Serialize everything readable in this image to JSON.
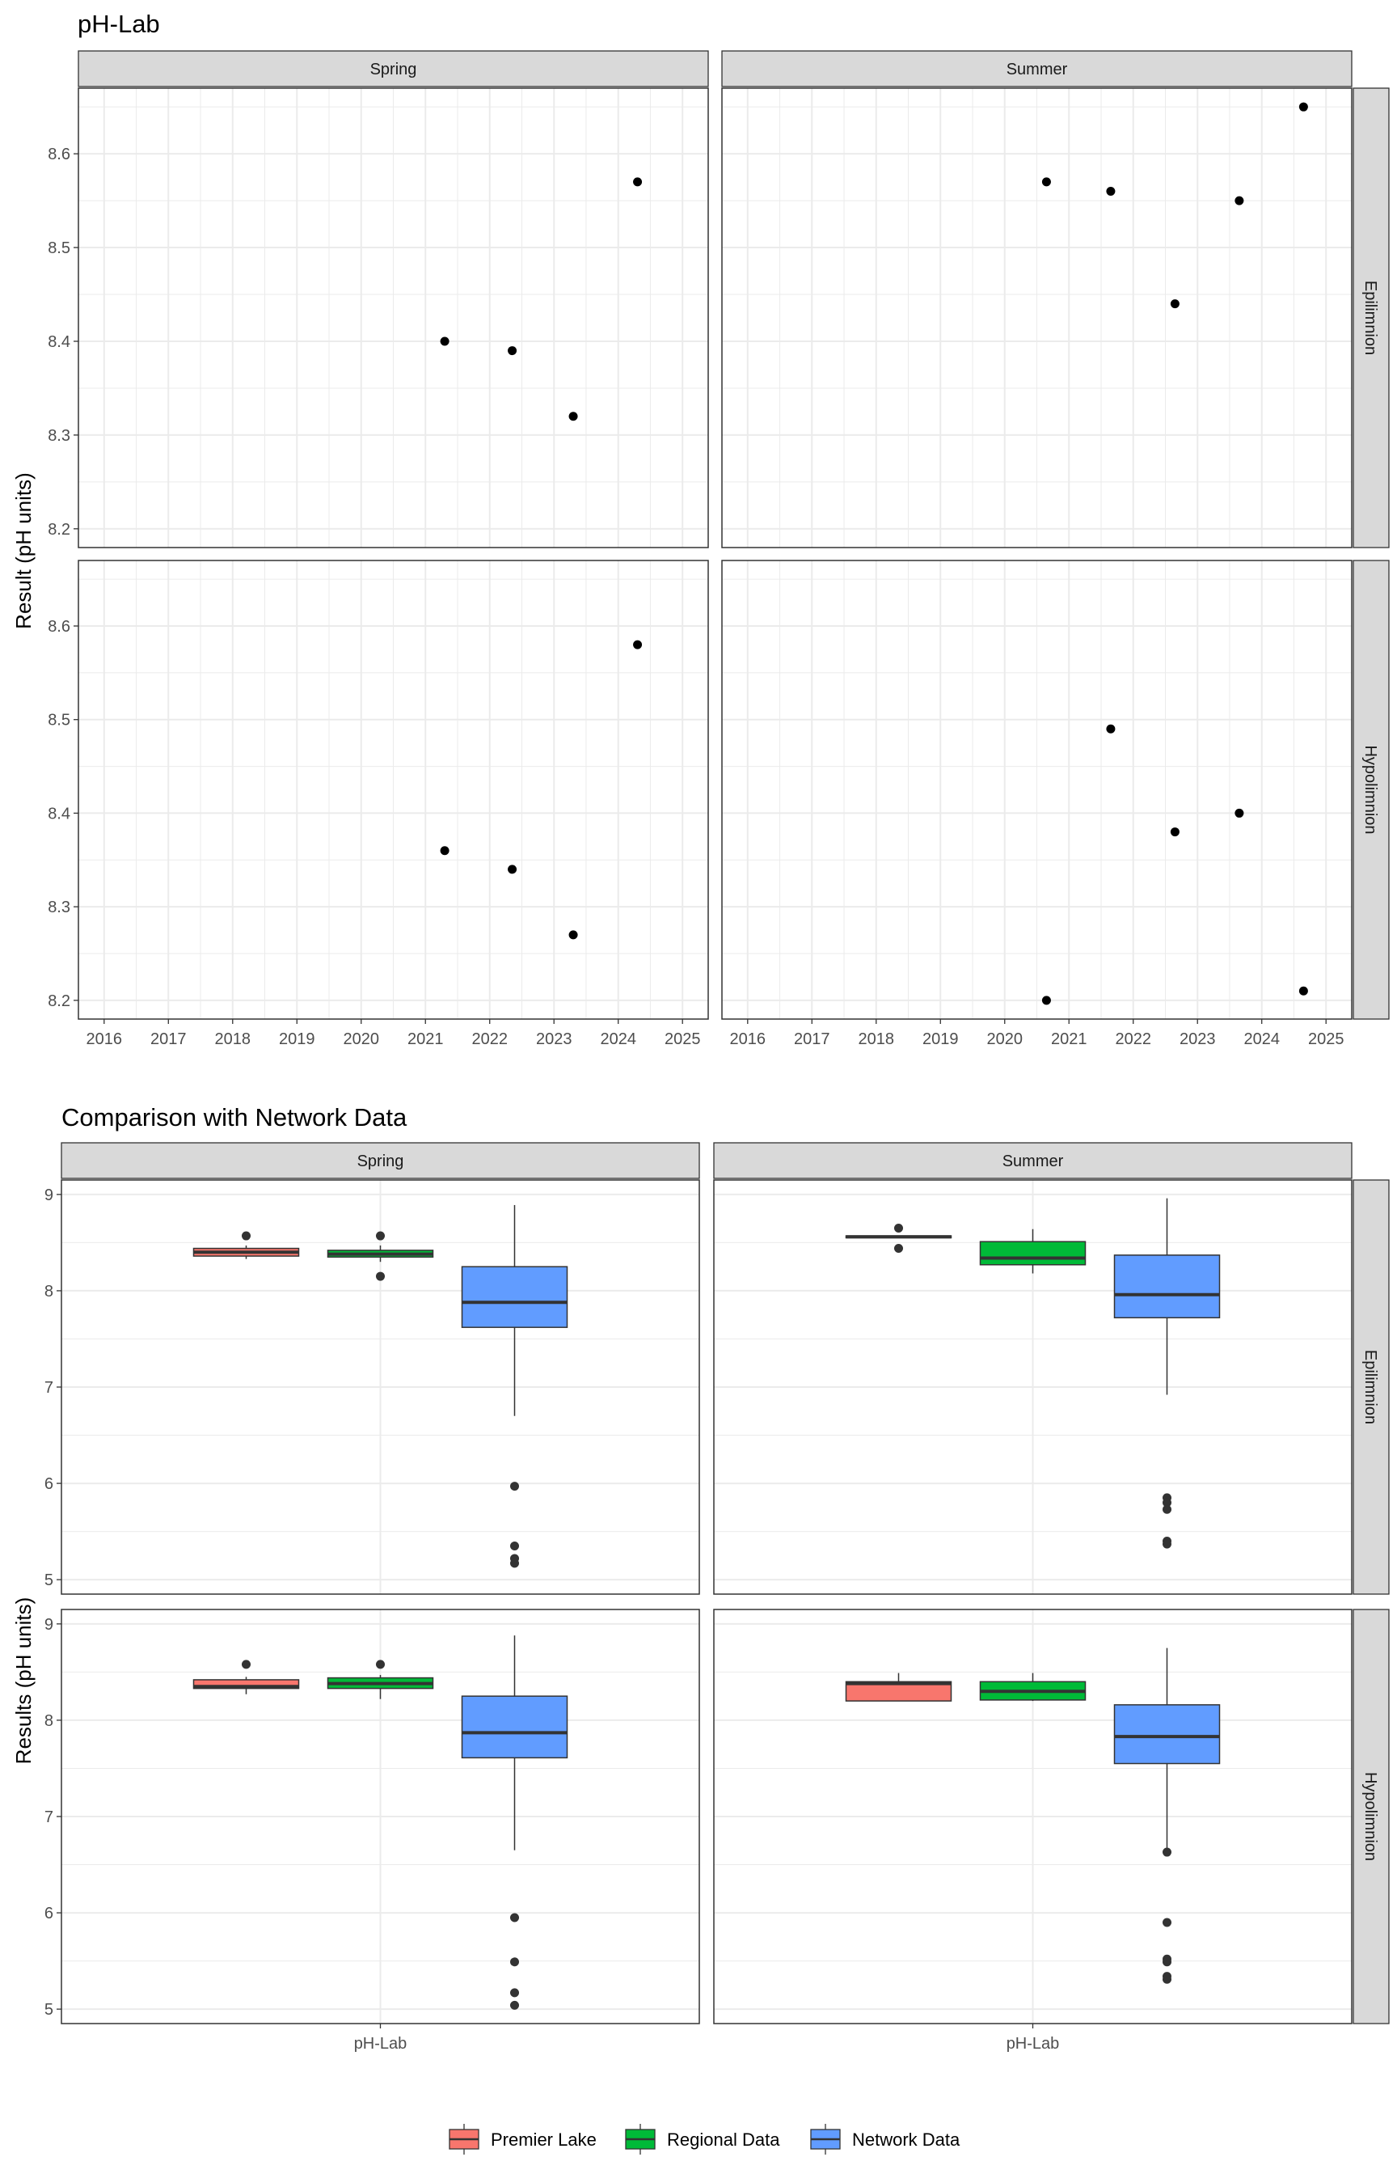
{
  "colors": {
    "premier": "#F8766D",
    "regional": "#00BA38",
    "network": "#619CFF",
    "strip_bg": "#D9D9D9",
    "grid": "#EBEBEB"
  },
  "chart_data": [
    {
      "type": "scatter",
      "title": "pH-Lab",
      "ylabel": "Result (pH units)",
      "xlabel": "",
      "xlim": [
        2015.6,
        2025.4
      ],
      "ylim": [
        8.18,
        8.67
      ],
      "x_ticks": [
        "2016",
        "2017",
        "2018",
        "2019",
        "2020",
        "2021",
        "2022",
        "2023",
        "2024",
        "2025"
      ],
      "y_ticks": [
        "8.2",
        "8.3",
        "8.4",
        "8.5",
        "8.6"
      ],
      "col_facets": [
        "Spring",
        "Summer"
      ],
      "row_facets": [
        "Epilimnion",
        "Hypolimnion"
      ],
      "grid": true,
      "panels": [
        {
          "col": "Spring",
          "row": "Epilimnion",
          "points": [
            [
              2021.3,
              8.4
            ],
            [
              2022.35,
              8.39
            ],
            [
              2023.3,
              8.32
            ],
            [
              2024.3,
              8.57
            ]
          ]
        },
        {
          "col": "Summer",
          "row": "Epilimnion",
          "points": [
            [
              2020.65,
              8.57
            ],
            [
              2021.65,
              8.56
            ],
            [
              2022.65,
              8.44
            ],
            [
              2023.65,
              8.55
            ],
            [
              2024.65,
              8.65
            ]
          ]
        },
        {
          "col": "Spring",
          "row": "Hypolimnion",
          "points": [
            [
              2021.3,
              8.36
            ],
            [
              2022.35,
              8.34
            ],
            [
              2023.3,
              8.27
            ],
            [
              2024.3,
              8.58
            ]
          ]
        },
        {
          "col": "Summer",
          "row": "Hypolimnion",
          "points": [
            [
              2020.65,
              8.2
            ],
            [
              2021.65,
              8.49
            ],
            [
              2022.65,
              8.38
            ],
            [
              2023.65,
              8.4
            ],
            [
              2024.65,
              8.21
            ]
          ]
        }
      ]
    },
    {
      "type": "box",
      "title": "Comparison with Network Data",
      "ylabel": "Results (pH units)",
      "xlabel": "",
      "ylim": [
        4.85,
        9.15
      ],
      "y_ticks": [
        "5",
        "6",
        "7",
        "8",
        "9"
      ],
      "x_category": "pH-Lab",
      "col_facets": [
        "Spring",
        "Summer"
      ],
      "row_facets": [
        "Epilimnion",
        "Hypolimnion"
      ],
      "grid": true,
      "legend": {
        "position": "bottom",
        "entries": [
          "Premier Lake",
          "Regional Data",
          "Network Data"
        ]
      },
      "panels": [
        {
          "col": "Spring",
          "row": "Epilimnion",
          "boxes": [
            {
              "group": "Premier Lake",
              "lower": 8.33,
              "q1": 8.36,
              "median": 8.4,
              "q3": 8.44,
              "upper": 8.47,
              "outliers": [
                8.57
              ]
            },
            {
              "group": "Regional Data",
              "lower": 8.3,
              "q1": 8.35,
              "median": 8.38,
              "q3": 8.42,
              "upper": 8.47,
              "outliers": [
                8.57,
                8.15
              ]
            },
            {
              "group": "Network Data",
              "lower": 6.7,
              "q1": 7.62,
              "median": 7.88,
              "q3": 8.25,
              "upper": 8.89,
              "outliers": [
                5.97,
                5.35,
                5.22,
                5.17
              ]
            }
          ]
        },
        {
          "col": "Summer",
          "row": "Epilimnion",
          "boxes": [
            {
              "group": "Premier Lake",
              "lower": 8.55,
              "q1": 8.55,
              "median": 8.56,
              "q3": 8.57,
              "upper": 8.57,
              "outliers": [
                8.65,
                8.44
              ]
            },
            {
              "group": "Regional Data",
              "lower": 8.18,
              "q1": 8.27,
              "median": 8.34,
              "q3": 8.51,
              "upper": 8.64,
              "outliers": []
            },
            {
              "group": "Network Data",
              "lower": 6.92,
              "q1": 7.72,
              "median": 7.96,
              "q3": 8.37,
              "upper": 8.96,
              "outliers": [
                5.85,
                5.8,
                5.73,
                5.4,
                5.37
              ]
            }
          ]
        },
        {
          "col": "Spring",
          "row": "Hypolimnion",
          "boxes": [
            {
              "group": "Premier Lake",
              "lower": 8.27,
              "q1": 8.33,
              "median": 8.35,
              "q3": 8.42,
              "upper": 8.45,
              "outliers": [
                8.58
              ]
            },
            {
              "group": "Regional Data",
              "lower": 8.22,
              "q1": 8.33,
              "median": 8.38,
              "q3": 8.44,
              "upper": 8.47,
              "outliers": [
                8.58
              ]
            },
            {
              "group": "Network Data",
              "lower": 6.65,
              "q1": 7.61,
              "median": 7.87,
              "q3": 8.25,
              "upper": 8.88,
              "outliers": [
                5.95,
                5.49,
                5.17,
                5.04
              ]
            }
          ]
        },
        {
          "col": "Summer",
          "row": "Hypolimnion",
          "boxes": [
            {
              "group": "Premier Lake",
              "lower": 8.2,
              "q1": 8.2,
              "median": 8.38,
              "q3": 8.4,
              "upper": 8.49,
              "outliers": []
            },
            {
              "group": "Regional Data",
              "lower": 8.2,
              "q1": 8.21,
              "median": 8.3,
              "q3": 8.4,
              "upper": 8.49,
              "outliers": []
            },
            {
              "group": "Network Data",
              "lower": 6.62,
              "q1": 7.55,
              "median": 7.83,
              "q3": 8.16,
              "upper": 8.75,
              "outliers": [
                6.63,
                5.9,
                5.52,
                5.49,
                5.34,
                5.31
              ]
            }
          ]
        }
      ]
    }
  ]
}
